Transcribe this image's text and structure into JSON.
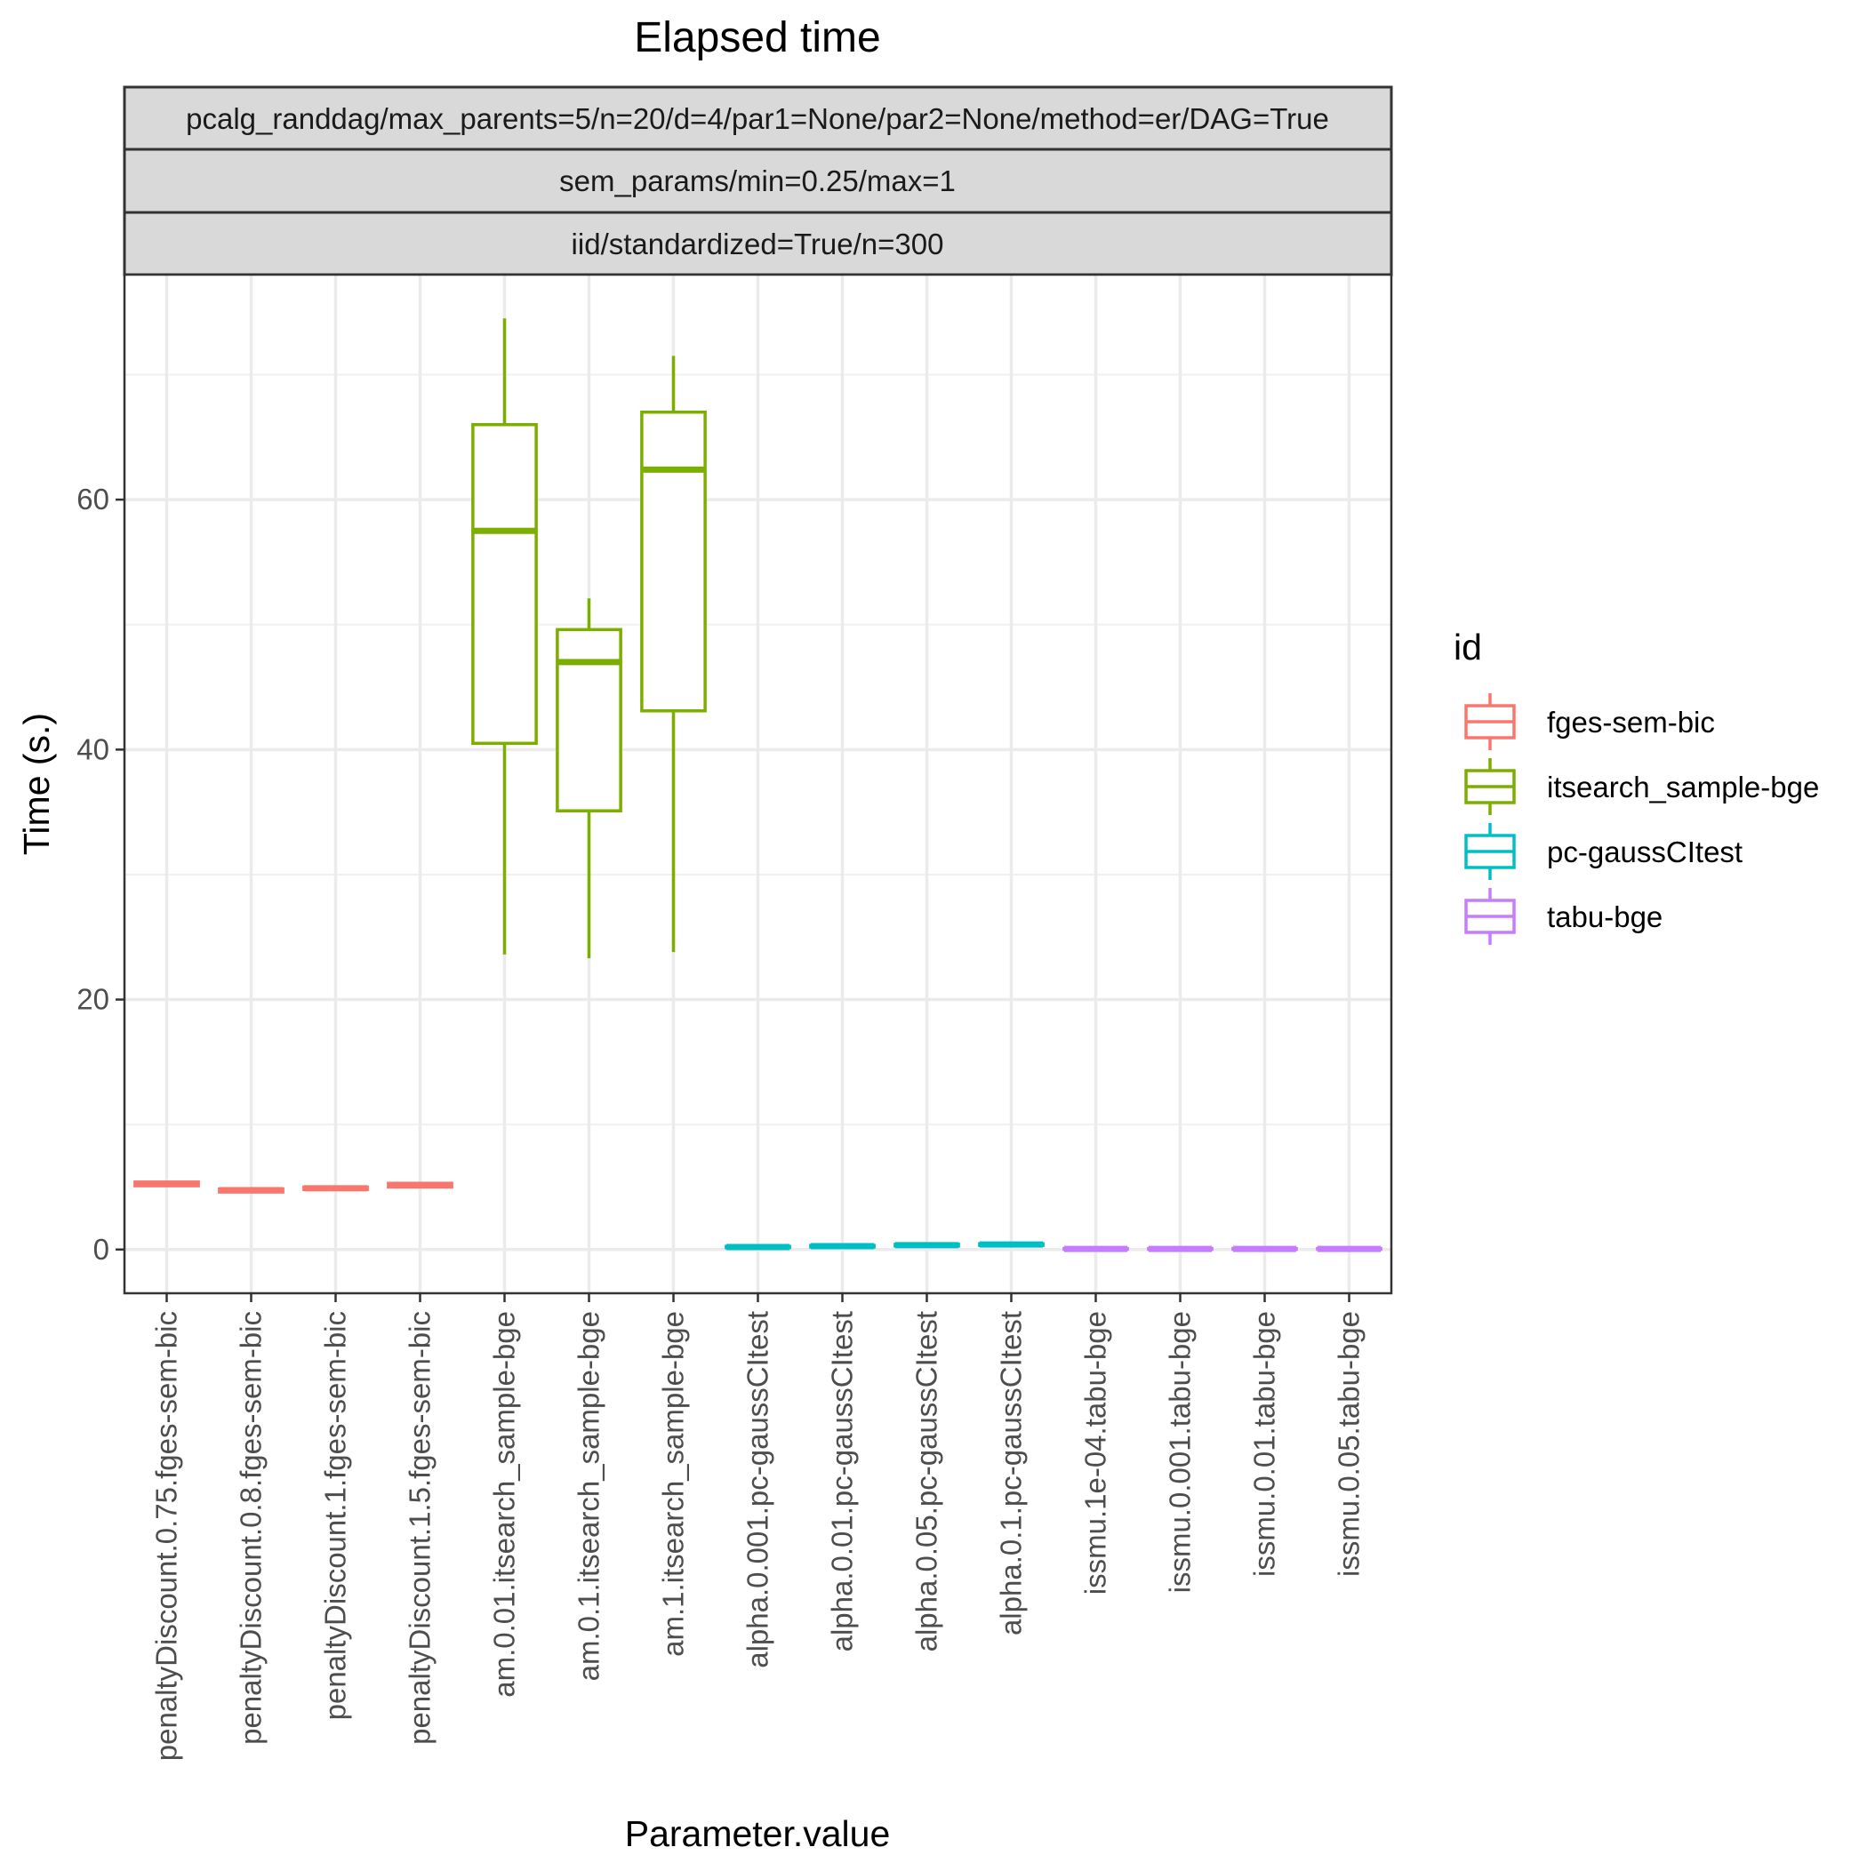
{
  "chart_data": {
    "type": "boxplot",
    "title": "Elapsed time",
    "strips": [
      "pcalg_randdag/max_parents=5/n=20/d=4/par1=None/par2=None/method=er/DAG=True",
      "sem_params/min=0.25/max=1",
      "iid/standardized=True/n=300"
    ],
    "xlabel": "Parameter.value",
    "ylabel": "Time (s.)",
    "ylim": [
      -3.5,
      78
    ],
    "yticks": [
      0,
      20,
      40,
      60
    ],
    "y_minor_ticks": [
      10,
      30,
      50,
      70
    ],
    "legend": {
      "title": "id",
      "position": "right",
      "entries": [
        {
          "label": "fges-sem-bic",
          "color": "#F8766D"
        },
        {
          "label": "itsearch_sample-bge",
          "color": "#7CAE00"
        },
        {
          "label": "pc-gaussCItest",
          "color": "#00BFC4"
        },
        {
          "label": "tabu-bge",
          "color": "#C77CFF"
        }
      ]
    },
    "categories": [
      {
        "label": "penaltyDiscount.0.75.fges-sem-bic",
        "group": 0,
        "min": 5.0,
        "q1": 5.1,
        "median": 5.25,
        "q3": 5.4,
        "max": 5.5
      },
      {
        "label": "penaltyDiscount.0.8.fges-sem-bic",
        "group": 0,
        "min": 4.5,
        "q1": 4.6,
        "median": 4.75,
        "q3": 4.85,
        "max": 4.95
      },
      {
        "label": "penaltyDiscount.1.fges-sem-bic",
        "group": 0,
        "min": 4.7,
        "q1": 4.8,
        "median": 4.9,
        "q3": 5.0,
        "max": 5.1
      },
      {
        "label": "penaltyDiscount.1.5.fges-sem-bic",
        "group": 0,
        "min": 4.9,
        "q1": 5.0,
        "median": 5.15,
        "q3": 5.3,
        "max": 5.4
      },
      {
        "label": "am.0.01.itsearch_sample-bge",
        "group": 1,
        "min": 23.6,
        "q1": 40.5,
        "median": 57.5,
        "q3": 66.0,
        "max": 74.5
      },
      {
        "label": "am.0.1.itsearch_sample-bge",
        "group": 1,
        "min": 23.3,
        "q1": 35.1,
        "median": 47.0,
        "q3": 49.6,
        "max": 52.1
      },
      {
        "label": "am.1.itsearch_sample-bge",
        "group": 1,
        "min": 23.8,
        "q1": 43.1,
        "median": 62.4,
        "q3": 67.0,
        "max": 71.5
      },
      {
        "label": "alpha.0.001.pc-gaussCItest",
        "group": 2,
        "min": 0.1,
        "q1": 0.15,
        "median": 0.2,
        "q3": 0.25,
        "max": 0.3
      },
      {
        "label": "alpha.0.01.pc-gaussCItest",
        "group": 2,
        "min": 0.15,
        "q1": 0.2,
        "median": 0.27,
        "q3": 0.33,
        "max": 0.4
      },
      {
        "label": "alpha.0.05.pc-gaussCItest",
        "group": 2,
        "min": 0.2,
        "q1": 0.28,
        "median": 0.35,
        "q3": 0.42,
        "max": 0.5
      },
      {
        "label": "alpha.0.1.pc-gaussCItest",
        "group": 2,
        "min": 0.25,
        "q1": 0.33,
        "median": 0.4,
        "q3": 0.47,
        "max": 0.55
      },
      {
        "label": "issmu.1e-04.tabu-bge",
        "group": 3,
        "min": 0.0,
        "q1": 0.02,
        "median": 0.05,
        "q3": 0.08,
        "max": 0.1
      },
      {
        "label": "issmu.0.001.tabu-bge",
        "group": 3,
        "min": 0.0,
        "q1": 0.02,
        "median": 0.05,
        "q3": 0.08,
        "max": 0.1
      },
      {
        "label": "issmu.0.01.tabu-bge",
        "group": 3,
        "min": 0.0,
        "q1": 0.02,
        "median": 0.05,
        "q3": 0.08,
        "max": 0.1
      },
      {
        "label": "issmu.0.05.tabu-bge",
        "group": 3,
        "min": 0.0,
        "q1": 0.02,
        "median": 0.05,
        "q3": 0.08,
        "max": 0.1
      }
    ]
  }
}
